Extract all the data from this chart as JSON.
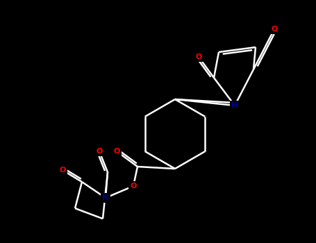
{
  "background_color": "#000000",
  "line_color": "#ffffff",
  "atom_colors": {
    "O": "#ff0000",
    "N": "#00008b",
    "C": "#ffffff"
  },
  "bond_width": 1.8,
  "figsize": [
    4.55,
    3.5
  ],
  "dpi": 100
}
